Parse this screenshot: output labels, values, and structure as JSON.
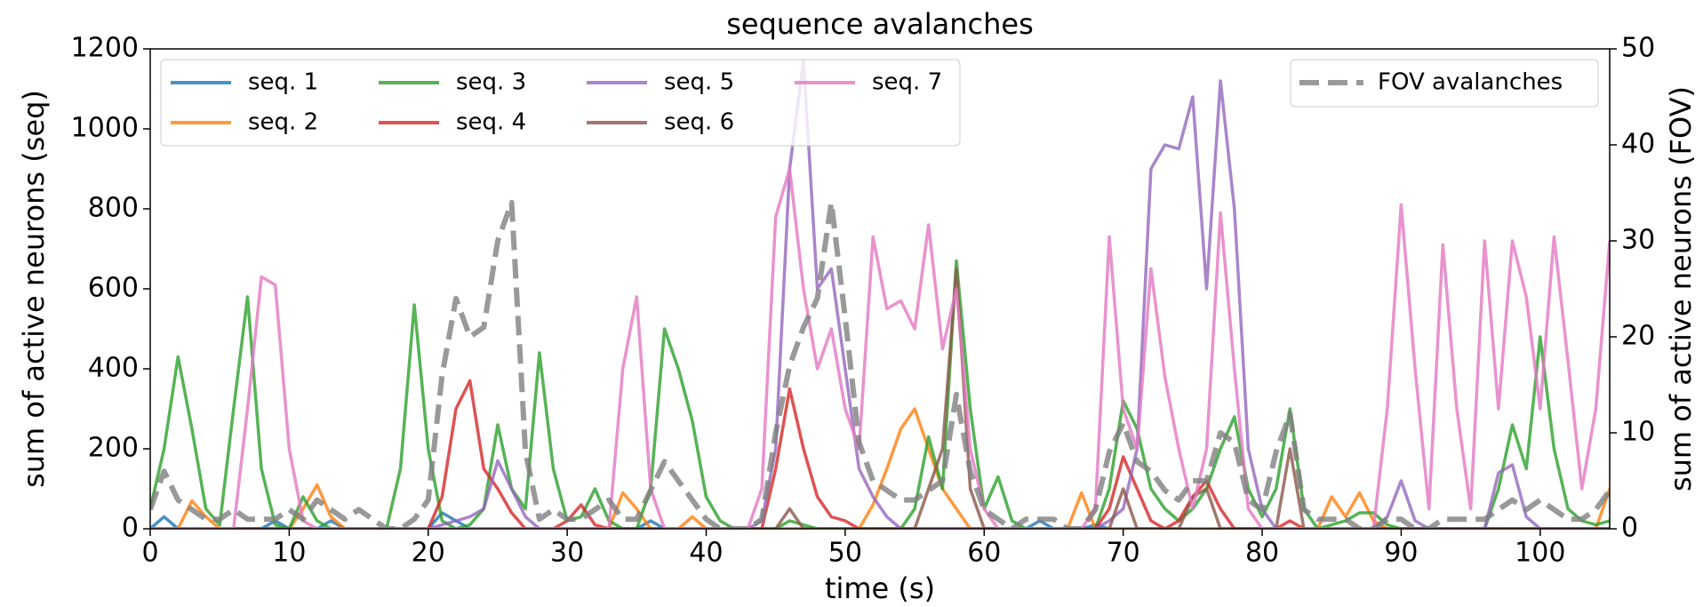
{
  "chart_data": {
    "type": "line",
    "title": "sequence avalanches",
    "xlabel": "time (s)",
    "ylabel": "sum of active neurons (seq)",
    "y2label": "sum of active neurons (FOV)",
    "x": [
      0,
      1,
      2,
      3,
      4,
      5,
      6,
      7,
      8,
      9,
      10,
      11,
      12,
      13,
      14,
      15,
      16,
      17,
      18,
      19,
      20,
      21,
      22,
      23,
      24,
      25,
      26,
      27,
      28,
      29,
      30,
      31,
      32,
      33,
      34,
      35,
      36,
      37,
      38,
      39,
      40,
      41,
      42,
      43,
      44,
      45,
      46,
      47,
      48,
      49,
      50,
      51,
      52,
      53,
      54,
      55,
      56,
      57,
      58,
      59,
      60,
      61,
      62,
      63,
      64,
      65,
      66,
      67,
      68,
      69,
      70,
      71,
      72,
      73,
      74,
      75,
      76,
      77,
      78,
      79,
      80,
      81,
      82,
      83,
      84,
      85,
      86,
      87,
      88,
      89,
      90,
      91,
      92,
      93,
      94,
      95,
      96,
      97,
      98,
      99,
      100,
      101,
      102,
      103,
      104,
      105
    ],
    "xlim": [
      0,
      105
    ],
    "xticks": [
      0,
      10,
      20,
      30,
      40,
      50,
      60,
      70,
      80,
      90,
      100
    ],
    "ylim": [
      0,
      1200
    ],
    "yticks": [
      0,
      200,
      400,
      600,
      800,
      1000,
      1200
    ],
    "y2lim": [
      0,
      50
    ],
    "y2ticks": [
      0,
      10,
      20,
      30,
      40,
      50
    ],
    "legend": "upper left",
    "series": [
      {
        "name": "seq. 1",
        "color": "#1f77b4",
        "values": [
          0,
          30,
          0,
          0,
          0,
          0,
          0,
          0,
          0,
          20,
          0,
          0,
          0,
          20,
          0,
          0,
          0,
          0,
          0,
          0,
          0,
          40,
          20,
          0,
          0,
          0,
          0,
          0,
          0,
          0,
          0,
          0,
          0,
          0,
          0,
          0,
          20,
          0,
          0,
          0,
          0,
          0,
          0,
          0,
          0,
          0,
          0,
          0,
          0,
          0,
          0,
          0,
          0,
          0,
          0,
          0,
          0,
          0,
          0,
          0,
          0,
          0,
          0,
          0,
          20,
          0,
          0,
          0,
          10,
          0,
          0,
          0,
          0,
          0,
          0,
          0,
          0,
          0,
          0,
          0,
          0,
          0,
          0,
          0,
          0,
          0,
          0,
          0,
          0,
          0,
          0,
          0,
          0,
          0,
          0,
          0,
          0,
          0,
          0,
          0,
          0,
          0,
          0,
          0,
          0,
          0
        ]
      },
      {
        "name": "seq. 2",
        "color": "#ff7f0e",
        "values": [
          0,
          0,
          0,
          70,
          30,
          0,
          0,
          0,
          0,
          0,
          0,
          50,
          110,
          30,
          0,
          0,
          0,
          0,
          0,
          0,
          0,
          0,
          0,
          0,
          0,
          0,
          0,
          0,
          0,
          0,
          0,
          0,
          0,
          0,
          90,
          50,
          0,
          0,
          0,
          30,
          0,
          0,
          0,
          0,
          0,
          0,
          0,
          0,
          0,
          0,
          0,
          0,
          60,
          150,
          250,
          300,
          200,
          100,
          50,
          0,
          0,
          0,
          0,
          0,
          0,
          0,
          0,
          90,
          0,
          0,
          0,
          0,
          0,
          0,
          0,
          0,
          0,
          0,
          0,
          0,
          0,
          0,
          0,
          0,
          0,
          80,
          30,
          90,
          20,
          0,
          0,
          0,
          0,
          0,
          0,
          0,
          0,
          0,
          0,
          0,
          0,
          0,
          0,
          0,
          0,
          100
        ]
      },
      {
        "name": "seq. 3",
        "color": "#2ca02c",
        "values": [
          50,
          200,
          430,
          250,
          50,
          10,
          300,
          580,
          150,
          10,
          0,
          80,
          20,
          0,
          0,
          0,
          0,
          0,
          150,
          560,
          200,
          20,
          0,
          10,
          50,
          260,
          100,
          50,
          440,
          150,
          20,
          30,
          100,
          20,
          0,
          0,
          100,
          500,
          400,
          270,
          80,
          20,
          0,
          0,
          0,
          0,
          20,
          10,
          0,
          0,
          0,
          0,
          0,
          0,
          0,
          50,
          230,
          100,
          670,
          300,
          50,
          130,
          20,
          0,
          0,
          0,
          0,
          0,
          0,
          100,
          320,
          250,
          100,
          50,
          20,
          50,
          100,
          200,
          280,
          100,
          30,
          100,
          300,
          50,
          0,
          10,
          20,
          40,
          40,
          10,
          0,
          0,
          0,
          0,
          0,
          0,
          0,
          100,
          260,
          150,
          480,
          200,
          50,
          20,
          10,
          20
        ]
      },
      {
        "name": "seq. 4",
        "color": "#d62728",
        "values": [
          0,
          0,
          0,
          0,
          0,
          0,
          0,
          0,
          0,
          0,
          0,
          0,
          0,
          0,
          0,
          0,
          0,
          0,
          0,
          0,
          0,
          80,
          300,
          370,
          150,
          100,
          40,
          0,
          0,
          0,
          20,
          60,
          10,
          0,
          0,
          0,
          0,
          0,
          0,
          0,
          0,
          0,
          0,
          0,
          0,
          150,
          350,
          200,
          80,
          30,
          20,
          0,
          0,
          0,
          0,
          0,
          0,
          0,
          0,
          0,
          0,
          0,
          0,
          0,
          0,
          0,
          0,
          0,
          0,
          50,
          180,
          100,
          20,
          0,
          20,
          80,
          120,
          50,
          0,
          0,
          0,
          0,
          20,
          0,
          0,
          0,
          0,
          0,
          0,
          0,
          0,
          0,
          0,
          0,
          0,
          0,
          0,
          0,
          0,
          0,
          0,
          0,
          0,
          0,
          0,
          0
        ]
      },
      {
        "name": "seq. 5",
        "color": "#9467bd",
        "values": [
          0,
          0,
          0,
          0,
          0,
          0,
          0,
          0,
          0,
          0,
          0,
          0,
          0,
          0,
          0,
          0,
          0,
          0,
          0,
          0,
          0,
          10,
          20,
          30,
          50,
          170,
          100,
          30,
          0,
          0,
          0,
          0,
          0,
          0,
          0,
          0,
          0,
          0,
          0,
          0,
          0,
          0,
          0,
          0,
          20,
          200,
          900,
          1170,
          600,
          650,
          400,
          150,
          80,
          30,
          0,
          0,
          0,
          0,
          0,
          0,
          0,
          0,
          0,
          0,
          0,
          0,
          0,
          0,
          0,
          20,
          50,
          200,
          900,
          960,
          950,
          1080,
          600,
          1120,
          800,
          200,
          50,
          0,
          0,
          0,
          0,
          0,
          0,
          0,
          0,
          30,
          120,
          20,
          0,
          0,
          0,
          0,
          0,
          140,
          160,
          30,
          0,
          0,
          0,
          0,
          0,
          0
        ]
      },
      {
        "name": "seq. 6",
        "color": "#8c564b",
        "values": [
          0,
          0,
          0,
          0,
          0,
          0,
          0,
          0,
          0,
          0,
          0,
          0,
          0,
          0,
          0,
          0,
          0,
          0,
          0,
          0,
          0,
          0,
          0,
          0,
          0,
          0,
          0,
          0,
          0,
          0,
          0,
          0,
          0,
          0,
          0,
          0,
          0,
          0,
          0,
          0,
          0,
          0,
          0,
          0,
          0,
          0,
          50,
          0,
          0,
          0,
          0,
          0,
          0,
          0,
          0,
          0,
          100,
          200,
          650,
          100,
          0,
          0,
          0,
          0,
          0,
          0,
          0,
          0,
          0,
          0,
          100,
          0,
          0,
          0,
          0,
          80,
          100,
          0,
          0,
          0,
          0,
          0,
          200,
          0,
          0,
          0,
          0,
          0,
          0,
          0,
          0,
          0,
          0,
          0,
          0,
          0,
          0,
          0,
          0,
          0,
          0,
          0,
          0,
          0,
          0,
          0
        ]
      },
      {
        "name": "seq. 7",
        "color": "#e377c2",
        "values": [
          0,
          0,
          0,
          0,
          0,
          0,
          0,
          300,
          630,
          610,
          200,
          20,
          0,
          0,
          0,
          0,
          0,
          0,
          0,
          0,
          0,
          0,
          0,
          0,
          0,
          0,
          0,
          0,
          0,
          0,
          0,
          0,
          0,
          0,
          400,
          580,
          100,
          0,
          0,
          0,
          0,
          0,
          0,
          0,
          100,
          780,
          900,
          600,
          400,
          500,
          300,
          200,
          730,
          550,
          570,
          500,
          760,
          450,
          600,
          200,
          50,
          0,
          0,
          0,
          0,
          0,
          0,
          0,
          50,
          730,
          300,
          200,
          650,
          380,
          200,
          50,
          200,
          790,
          400,
          50,
          0,
          0,
          0,
          0,
          0,
          0,
          0,
          0,
          0,
          300,
          810,
          400,
          50,
          710,
          300,
          50,
          720,
          300,
          720,
          580,
          300,
          730,
          420,
          100,
          300,
          720
        ]
      },
      {
        "name": "FOV avalanches",
        "color": "#7f7f7f",
        "axis": "y2",
        "linestyle": "dashed",
        "legend": "upper right",
        "values": [
          2,
          6,
          3,
          2,
          1,
          1,
          2,
          1,
          1,
          1,
          2,
          1,
          3,
          2,
          1,
          2,
          1,
          0,
          0,
          1,
          3,
          16,
          24,
          20,
          21,
          30,
          34,
          8,
          1,
          2,
          1,
          1,
          2,
          3,
          1,
          1,
          4,
          7,
          5,
          3,
          1,
          0,
          0,
          0,
          1,
          10,
          17,
          21,
          24,
          34,
          22,
          9,
          5,
          4,
          3,
          3,
          4,
          5,
          14,
          6,
          2,
          1,
          0,
          1,
          1,
          1,
          0,
          0,
          2,
          8,
          11,
          7,
          6,
          4,
          3,
          5,
          5,
          10,
          9,
          3,
          2,
          8,
          12,
          2,
          1,
          1,
          1,
          0,
          0,
          1,
          1,
          0,
          0,
          1,
          1,
          1,
          1,
          2,
          3,
          2,
          3,
          2,
          1,
          1,
          2,
          4
        ]
      }
    ]
  }
}
